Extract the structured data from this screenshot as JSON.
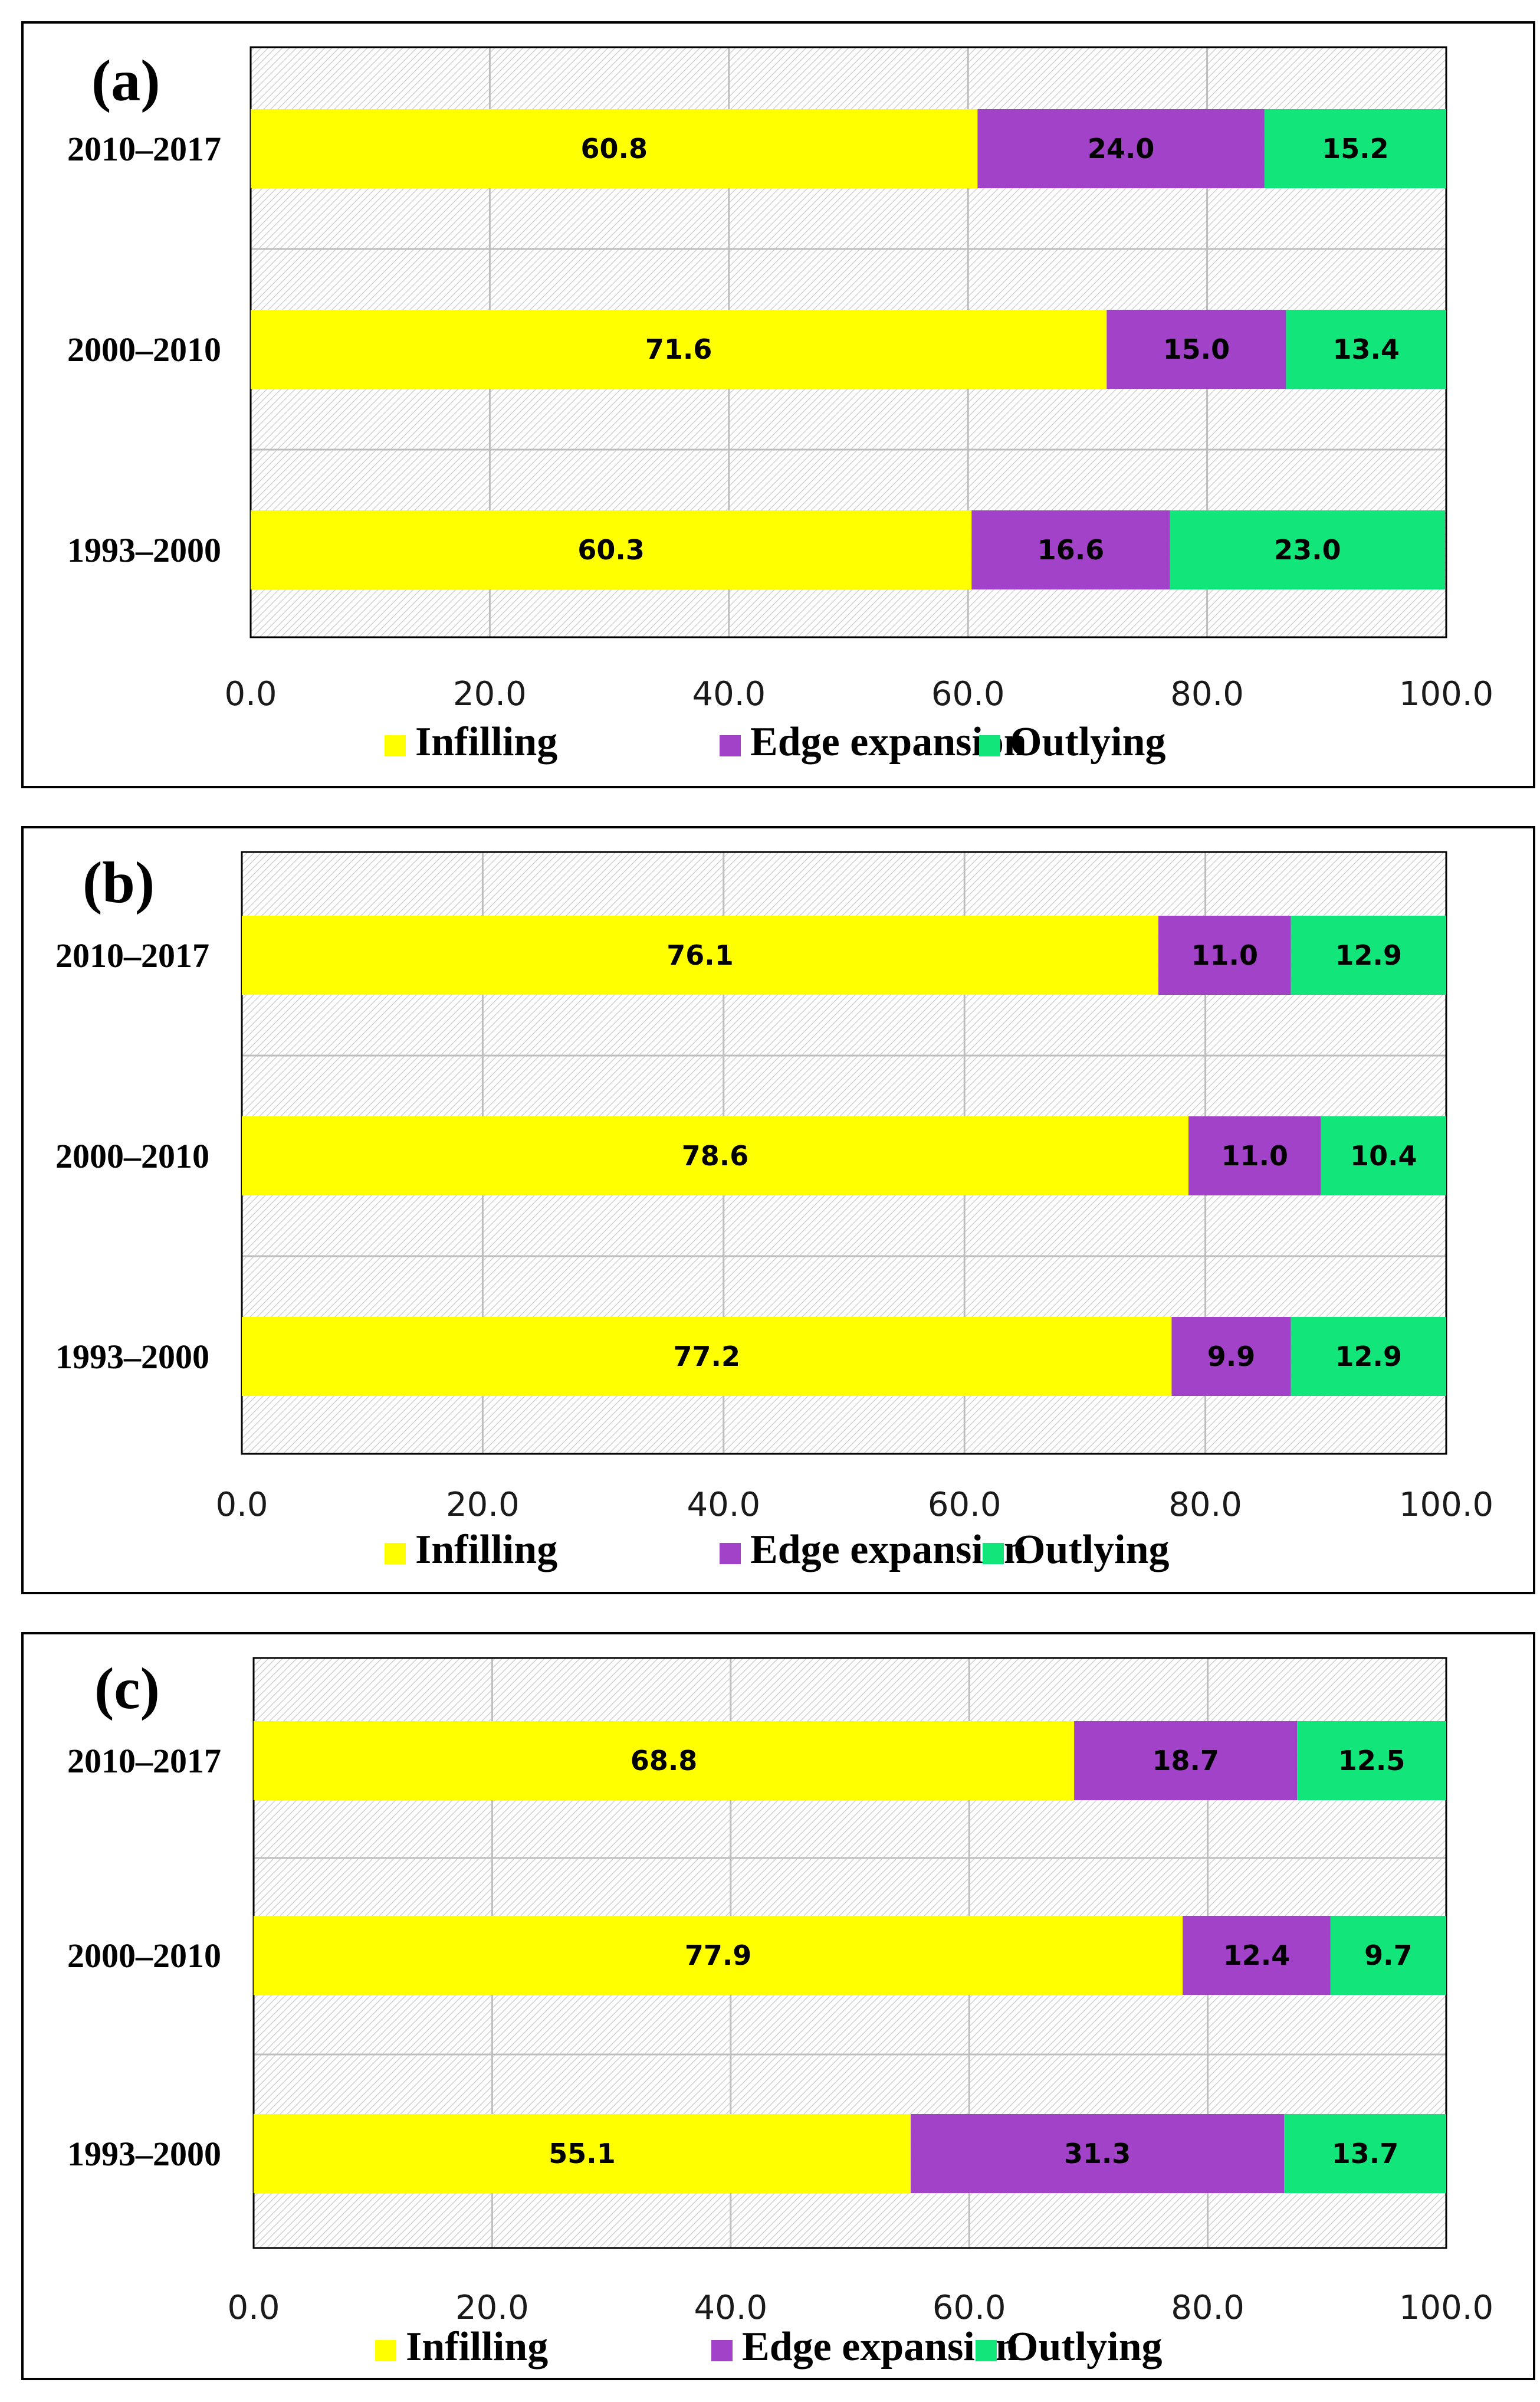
{
  "legend_labels": [
    "Infilling",
    "Edge expansion",
    "Outlying"
  ],
  "colors": {
    "infilling": "#FFFF00",
    "edge": "#A142C8",
    "outlying": "#12E67A"
  },
  "chart_data": [
    {
      "type": "bar",
      "orientation": "horizontal",
      "stacked": true,
      "title": "(a)",
      "categories": [
        "2010–2017",
        "2000–2010",
        "1993–2000"
      ],
      "series": [
        {
          "name": "Infilling",
          "values": [
            60.8,
            71.6,
            60.3
          ]
        },
        {
          "name": "Edge expansion",
          "values": [
            24.0,
            15.0,
            16.6
          ]
        },
        {
          "name": "Outlying",
          "values": [
            15.2,
            13.4,
            23.0
          ]
        }
      ],
      "data_labels": [
        [
          "60.8",
          "71.6",
          "60.3"
        ],
        [
          "24.0",
          "15.0",
          "16.6"
        ],
        [
          "15.2",
          "13.4",
          "23.0"
        ]
      ],
      "xlim": [
        0,
        100
      ],
      "xticks": [
        "0.0",
        "20.0",
        "40.0",
        "60.0",
        "80.0",
        "100.0"
      ],
      "grid": true,
      "legend": "bottom"
    },
    {
      "type": "bar",
      "orientation": "horizontal",
      "stacked": true,
      "title": "(b)",
      "categories": [
        "2010–2017",
        "2000–2010",
        "1993–2000"
      ],
      "series": [
        {
          "name": "Infilling",
          "values": [
            76.1,
            78.6,
            77.2
          ]
        },
        {
          "name": "Edge expansion",
          "values": [
            11.0,
            11.0,
            9.9
          ]
        },
        {
          "name": "Outlying",
          "values": [
            12.9,
            10.4,
            12.9
          ]
        }
      ],
      "data_labels": [
        [
          "76.1",
          "78.6",
          "77.2"
        ],
        [
          "11.0",
          "11.0",
          "9.9"
        ],
        [
          "12.9",
          "10.4",
          "12.9"
        ]
      ],
      "xlim": [
        0,
        100
      ],
      "xticks": [
        "0.0",
        "20.0",
        "40.0",
        "60.0",
        "80.0",
        "100.0"
      ],
      "grid": true,
      "legend": "bottom"
    },
    {
      "type": "bar",
      "orientation": "horizontal",
      "stacked": true,
      "title": "(c)",
      "categories": [
        "2010–2017",
        "2000–2010",
        "1993–2000"
      ],
      "series": [
        {
          "name": "Infilling",
          "values": [
            68.8,
            77.9,
            55.1
          ]
        },
        {
          "name": "Edge expansion",
          "values": [
            18.7,
            12.4,
            31.3
          ]
        },
        {
          "name": "Outlying",
          "values": [
            12.5,
            9.7,
            13.7
          ]
        }
      ],
      "data_labels": [
        [
          "68.8",
          "77.9",
          "55.1"
        ],
        [
          "18.7",
          "12.4",
          "31.3"
        ],
        [
          "12.5",
          "9.7",
          "13.7"
        ]
      ],
      "xlim": [
        0,
        100
      ],
      "xticks": [
        "0.0",
        "20.0",
        "40.0",
        "60.0",
        "80.0",
        "100.0"
      ],
      "grid": true,
      "legend": "bottom"
    }
  ]
}
